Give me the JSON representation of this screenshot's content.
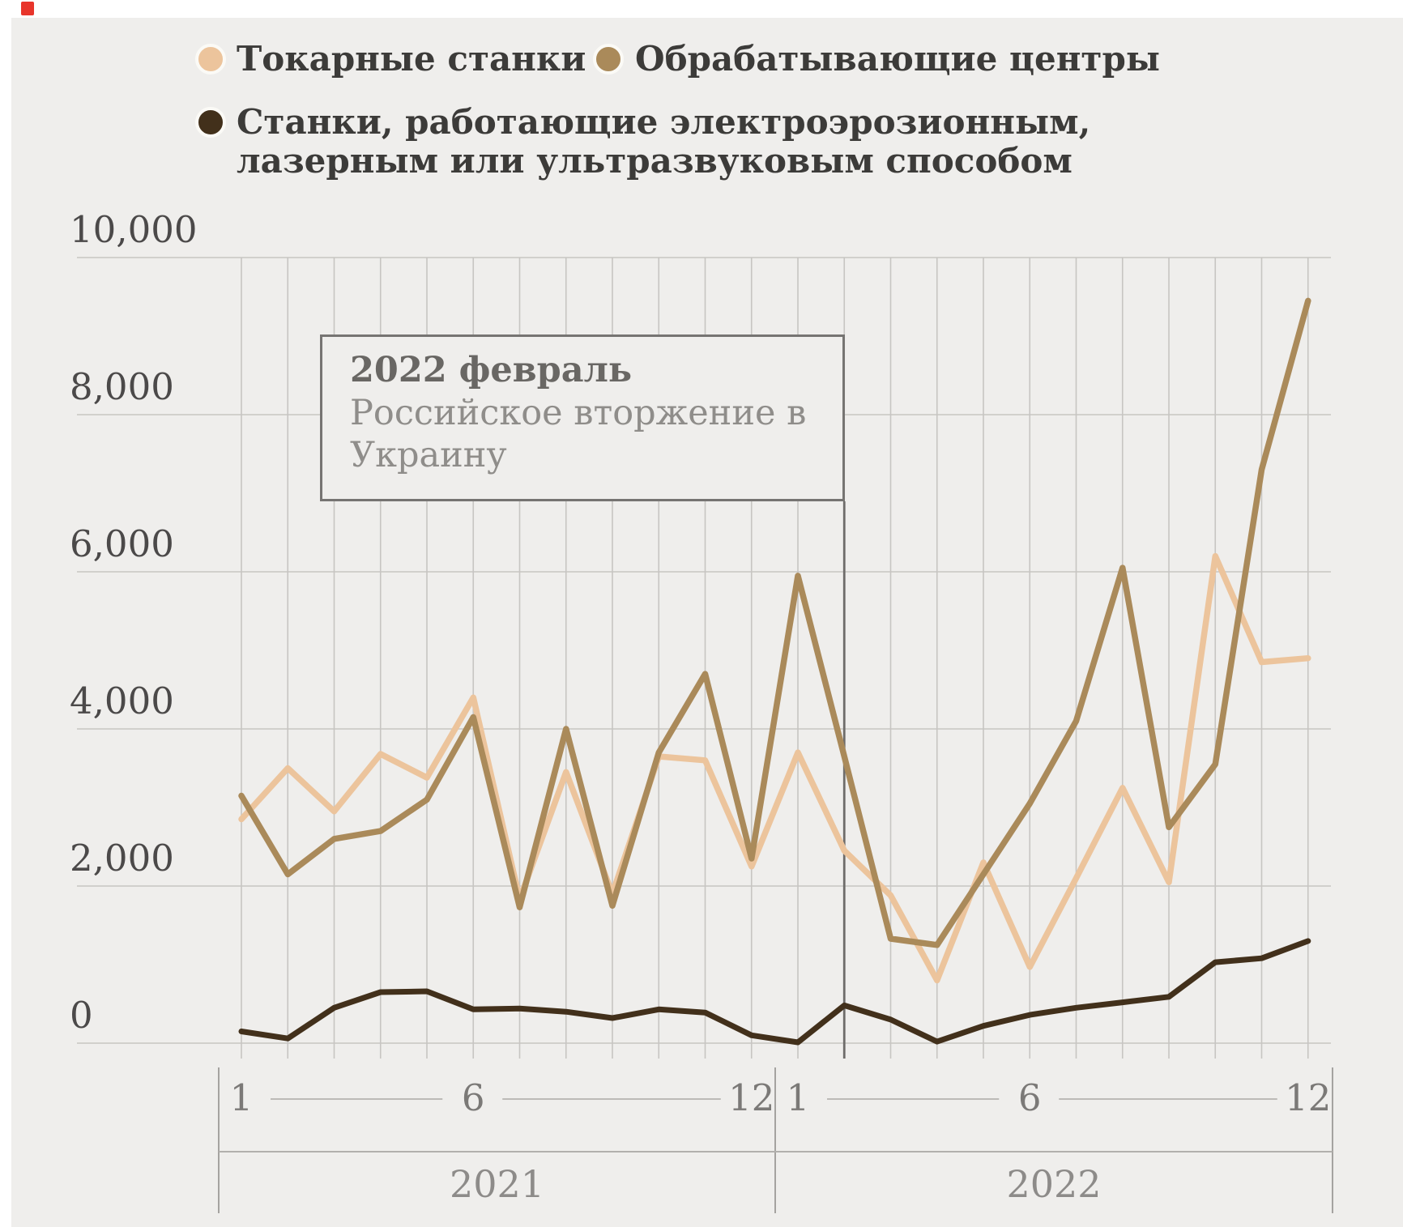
{
  "colors": {
    "background": "#efeeec",
    "margin": "#ffffff",
    "artifact_red": "#e8352b",
    "grid": "#c7c5c2",
    "axis_text": "#4b4949",
    "month_text": "#7b7977",
    "year_text": "#8d8b89",
    "legend_text": "#3c3b39",
    "annotation_border": "#767472",
    "annotation_line": "#6e6c6a",
    "annotation_title": "#696764",
    "annotation_body": "#8f8d8a",
    "leader_line": "#bcbab7",
    "bracket_line": "#b2b0ad",
    "tick_line": "#a5a3a0"
  },
  "legend": {
    "items": [
      {
        "label": "Токарные станки",
        "color": "#ecc49c"
      },
      {
        "label": "Обрабатывающие центры",
        "color": "#aa8a5a"
      },
      {
        "label_line1": "Станки, работающие электроэрозионным,",
        "label_line2": "лазерным или ультразвуковым способом",
        "color": "#42301b"
      }
    ]
  },
  "annotation": {
    "title": "2022 февраль",
    "body_lines": [
      "Российское вторжение в",
      "Украину"
    ]
  },
  "chart_data": {
    "type": "line",
    "title": "",
    "x_unit": "month",
    "n_months": 24,
    "year_labels": [
      "2021",
      "2022"
    ],
    "x_tick_labels": [
      {
        "label": "1",
        "month_index": 0
      },
      {
        "label": "6",
        "month_index": 5
      },
      {
        "label": "12",
        "month_index": 11
      },
      {
        "label": "1",
        "month_index": 12
      },
      {
        "label": "6",
        "month_index": 17
      },
      {
        "label": "12",
        "month_index": 23
      }
    ],
    "y_ticks": [
      {
        "label": "0",
        "value": 0
      },
      {
        "label": "2,000",
        "value": 2000
      },
      {
        "label": "4,000",
        "value": 4000
      },
      {
        "label": "6,000",
        "value": 6000
      },
      {
        "label": "8,000",
        "value": 8000
      },
      {
        "label": "10,000",
        "value": 10000
      }
    ],
    "ylim": [
      0,
      10000
    ],
    "grid": "on",
    "legend_position": "top-left",
    "annotation_month_index": 13,
    "series": [
      {
        "name": "Токарные станки",
        "color": "#ecc49c",
        "values": [
          2850,
          3500,
          2950,
          3680,
          3380,
          4400,
          1830,
          3450,
          1900,
          3650,
          3600,
          2250,
          3700,
          2450,
          1880,
          800,
          2300,
          970,
          2100,
          3250,
          2050,
          6200,
          4850,
          4900
        ]
      },
      {
        "name": "Обрабатывающие центры",
        "color": "#aa8a5a",
        "values": [
          3150,
          2150,
          2600,
          2700,
          3100,
          4150,
          1730,
          4000,
          1750,
          3700,
          4700,
          2350,
          5950,
          3650,
          1330,
          1250,
          2150,
          3050,
          4100,
          6050,
          2750,
          3550,
          7300,
          9450
        ]
      },
      {
        "name": "Станки, работающие электроэрозионным, лазерным или ультразвуковым способом",
        "color": "#42301b",
        "values": [
          150,
          60,
          450,
          650,
          660,
          430,
          440,
          400,
          320,
          430,
          390,
          100,
          10,
          480,
          300,
          20,
          220,
          360,
          450,
          520,
          590,
          1030,
          1080,
          1300
        ]
      }
    ]
  }
}
